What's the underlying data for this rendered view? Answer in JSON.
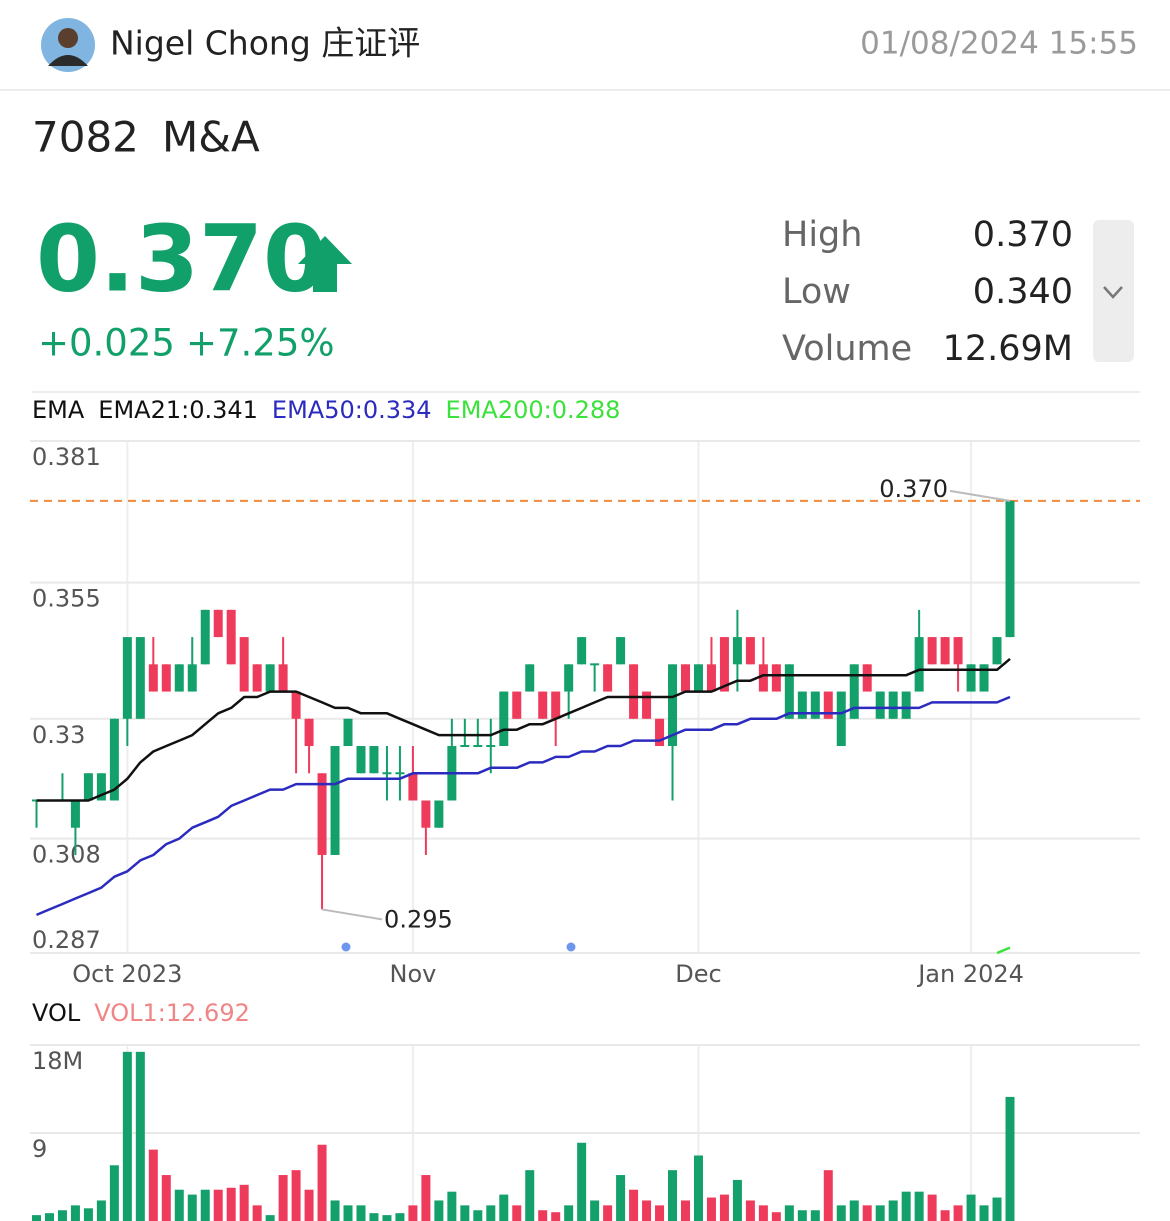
{
  "header": {
    "author": "Nigel Chong 庄证评",
    "timestamp": "01/08/2024 15:55"
  },
  "quote": {
    "code": "7082",
    "name": "M&A",
    "price": "0.370",
    "change": "+0.025",
    "change_pct": "+7.25%",
    "stats": [
      {
        "label": "High",
        "value": "0.370"
      },
      {
        "label": "Low",
        "value": "0.340"
      },
      {
        "label": "Volume",
        "value": "12.69M"
      }
    ]
  },
  "chart_data": [
    {
      "type": "candlestick",
      "indicator": "EMA",
      "categories": [
        null,
        null,
        null,
        null,
        null,
        null,
        null,
        "Oct 2023",
        null,
        null,
        null,
        null,
        null,
        null,
        null,
        null,
        null,
        null,
        null,
        null,
        null,
        null,
        null,
        null,
        null,
        null,
        null,
        null,
        null,
        "Nov",
        null,
        null,
        null,
        null,
        null,
        null,
        null,
        null,
        null,
        null,
        null,
        null,
        null,
        null,
        null,
        null,
        null,
        null,
        null,
        null,
        null,
        "Dec",
        null,
        null,
        null,
        null,
        null,
        null,
        null,
        null,
        null,
        null,
        null,
        null,
        null,
        null,
        null,
        null,
        null,
        null,
        null,
        null,
        "Jan 2024",
        null,
        null,
        null
      ],
      "candles": [
        [
          0.315,
          0.315,
          0.31,
          0.315
        ],
        [
          0.315,
          0.315,
          0.315,
          0.315
        ],
        [
          0.315,
          0.32,
          0.315,
          0.315
        ],
        [
          0.31,
          0.315,
          0.305,
          0.315
        ],
        [
          0.315,
          0.32,
          0.315,
          0.32
        ],
        [
          0.315,
          0.32,
          0.315,
          0.32
        ],
        [
          0.315,
          0.33,
          0.315,
          0.33
        ],
        [
          0.33,
          0.345,
          0.325,
          0.345
        ],
        [
          0.33,
          0.345,
          0.33,
          0.345
        ],
        [
          0.34,
          0.345,
          0.335,
          0.335
        ],
        [
          0.34,
          0.34,
          0.335,
          0.335
        ],
        [
          0.335,
          0.34,
          0.335,
          0.34
        ],
        [
          0.335,
          0.345,
          0.335,
          0.34
        ],
        [
          0.34,
          0.35,
          0.34,
          0.35
        ],
        [
          0.35,
          0.35,
          0.345,
          0.345
        ],
        [
          0.35,
          0.35,
          0.34,
          0.34
        ],
        [
          0.345,
          0.345,
          0.335,
          0.335
        ],
        [
          0.34,
          0.34,
          0.335,
          0.335
        ],
        [
          0.335,
          0.34,
          0.335,
          0.34
        ],
        [
          0.34,
          0.345,
          0.335,
          0.335
        ],
        [
          0.335,
          0.335,
          0.32,
          0.33
        ],
        [
          0.33,
          0.33,
          0.32,
          0.325
        ],
        [
          0.32,
          0.32,
          0.295,
          0.305
        ],
        [
          0.305,
          0.325,
          0.305,
          0.325
        ],
        [
          0.325,
          0.33,
          0.325,
          0.33
        ],
        [
          0.32,
          0.325,
          0.32,
          0.325
        ],
        [
          0.32,
          0.325,
          0.32,
          0.325
        ],
        [
          0.32,
          0.325,
          0.315,
          0.32
        ],
        [
          0.32,
          0.325,
          0.315,
          0.32
        ],
        [
          0.32,
          0.325,
          0.315,
          0.315
        ],
        [
          0.315,
          0.315,
          0.305,
          0.31
        ],
        [
          0.31,
          0.315,
          0.31,
          0.315
        ],
        [
          0.315,
          0.33,
          0.315,
          0.325
        ],
        [
          0.325,
          0.33,
          0.325,
          0.325
        ],
        [
          0.325,
          0.33,
          0.325,
          0.325
        ],
        [
          0.325,
          0.33,
          0.32,
          0.325
        ],
        [
          0.325,
          0.335,
          0.325,
          0.335
        ],
        [
          0.335,
          0.335,
          0.33,
          0.33
        ],
        [
          0.335,
          0.34,
          0.335,
          0.34
        ],
        [
          0.335,
          0.335,
          0.33,
          0.33
        ],
        [
          0.335,
          0.335,
          0.325,
          0.33
        ],
        [
          0.335,
          0.34,
          0.33,
          0.34
        ],
        [
          0.34,
          0.345,
          0.34,
          0.345
        ],
        [
          0.34,
          0.34,
          0.335,
          0.34
        ],
        [
          0.34,
          0.34,
          0.335,
          0.335
        ],
        [
          0.34,
          0.345,
          0.34,
          0.345
        ],
        [
          0.34,
          0.34,
          0.33,
          0.33
        ],
        [
          0.335,
          0.335,
          0.33,
          0.33
        ],
        [
          0.33,
          0.33,
          0.325,
          0.325
        ],
        [
          0.325,
          0.34,
          0.315,
          0.34
        ],
        [
          0.34,
          0.34,
          0.335,
          0.335
        ],
        [
          0.335,
          0.34,
          0.335,
          0.34
        ],
        [
          0.34,
          0.345,
          0.335,
          0.335
        ],
        [
          0.345,
          0.345,
          0.335,
          0.335
        ],
        [
          0.34,
          0.35,
          0.335,
          0.345
        ],
        [
          0.345,
          0.345,
          0.34,
          0.34
        ],
        [
          0.34,
          0.345,
          0.335,
          0.335
        ],
        [
          0.34,
          0.34,
          0.335,
          0.335
        ],
        [
          0.33,
          0.34,
          0.33,
          0.34
        ],
        [
          0.33,
          0.335,
          0.33,
          0.335
        ],
        [
          0.33,
          0.335,
          0.33,
          0.335
        ],
        [
          0.335,
          0.335,
          0.33,
          0.33
        ],
        [
          0.325,
          0.335,
          0.325,
          0.335
        ],
        [
          0.33,
          0.34,
          0.33,
          0.34
        ],
        [
          0.34,
          0.34,
          0.335,
          0.335
        ],
        [
          0.33,
          0.335,
          0.33,
          0.335
        ],
        [
          0.33,
          0.335,
          0.33,
          0.335
        ],
        [
          0.33,
          0.335,
          0.33,
          0.335
        ],
        [
          0.335,
          0.35,
          0.335,
          0.345
        ],
        [
          0.345,
          0.345,
          0.34,
          0.34
        ],
        [
          0.345,
          0.345,
          0.34,
          0.34
        ],
        [
          0.345,
          0.345,
          0.335,
          0.34
        ],
        [
          0.335,
          0.34,
          0.335,
          0.34
        ],
        [
          0.335,
          0.34,
          0.335,
          0.34
        ],
        [
          0.34,
          0.345,
          0.34,
          0.345
        ],
        [
          0.345,
          0.37,
          0.345,
          0.37
        ]
      ],
      "up_color": "#13a06b",
      "down_color": "#ee3b5b",
      "series": [
        {
          "name": "EMA21:0.341",
          "color": "#111111",
          "values": [
            0.315,
            0.315,
            0.315,
            0.315,
            0.315,
            0.316,
            0.317,
            0.319,
            0.322,
            0.324,
            0.325,
            0.326,
            0.327,
            0.329,
            0.331,
            0.332,
            0.334,
            0.334,
            0.335,
            0.335,
            0.335,
            0.334,
            0.333,
            0.332,
            0.332,
            0.331,
            0.331,
            0.331,
            0.33,
            0.329,
            0.328,
            0.327,
            0.327,
            0.327,
            0.327,
            0.327,
            0.328,
            0.328,
            0.329,
            0.329,
            0.33,
            0.331,
            0.332,
            0.333,
            0.334,
            0.334,
            0.334,
            0.334,
            0.334,
            0.334,
            0.335,
            0.335,
            0.335,
            0.336,
            0.337,
            0.337,
            0.338,
            0.338,
            0.338,
            0.338,
            0.338,
            0.338,
            0.338,
            0.338,
            0.338,
            0.338,
            0.338,
            0.338,
            0.339,
            0.339,
            0.339,
            0.339,
            0.339,
            0.339,
            0.339,
            0.341
          ]
        },
        {
          "name": "EMA50:0.334",
          "color": "#2b2bbf",
          "values": [
            0.294,
            0.295,
            0.296,
            0.297,
            0.298,
            0.299,
            0.301,
            0.302,
            0.304,
            0.305,
            0.307,
            0.308,
            0.31,
            0.311,
            0.312,
            0.314,
            0.315,
            0.316,
            0.317,
            0.317,
            0.318,
            0.318,
            0.318,
            0.318,
            0.319,
            0.319,
            0.319,
            0.319,
            0.319,
            0.32,
            0.32,
            0.32,
            0.32,
            0.32,
            0.32,
            0.321,
            0.321,
            0.321,
            0.322,
            0.322,
            0.323,
            0.323,
            0.324,
            0.324,
            0.325,
            0.325,
            0.326,
            0.326,
            0.326,
            0.327,
            0.328,
            0.328,
            0.328,
            0.329,
            0.329,
            0.33,
            0.33,
            0.33,
            0.331,
            0.331,
            0.331,
            0.331,
            0.331,
            0.332,
            0.332,
            0.332,
            0.332,
            0.332,
            0.332,
            0.333,
            0.333,
            0.333,
            0.333,
            0.333,
            0.333,
            0.334
          ]
        },
        {
          "name": "EMA200:0.288",
          "color": "#3be23b",
          "values": [
            null,
            null,
            null,
            null,
            null,
            null,
            null,
            null,
            null,
            null,
            null,
            null,
            null,
            null,
            null,
            null,
            null,
            null,
            null,
            null,
            null,
            null,
            null,
            null,
            null,
            null,
            null,
            null,
            null,
            null,
            null,
            null,
            null,
            null,
            null,
            null,
            null,
            null,
            null,
            null,
            null,
            null,
            null,
            null,
            null,
            null,
            null,
            null,
            null,
            null,
            null,
            null,
            null,
            null,
            null,
            null,
            null,
            null,
            null,
            null,
            null,
            null,
            null,
            null,
            null,
            null,
            null,
            null,
            null,
            null,
            null,
            null,
            null,
            null,
            0.287,
            0.288
          ]
        }
      ],
      "ylim": [
        0.287,
        0.381
      ],
      "yticks": [
        0.381,
        0.355,
        0.33,
        0.308,
        0.287
      ],
      "grid": true,
      "annotations": [
        "0.370",
        "0.295"
      ],
      "price_line_color": "#f08a3c"
    },
    {
      "type": "bar",
      "title": "VOL",
      "series": [
        {
          "name": "VOL1:12.692",
          "color": "#f08585",
          "values": [
            0.6,
            0.8,
            1.1,
            1.6,
            1.3,
            2.1,
            5.7,
            17.3,
            17.3,
            7.3,
            4.7,
            3.2,
            2.7,
            3.2,
            3.2,
            3.4,
            3.7,
            1.6,
            0.6,
            4.7,
            5.2,
            3.2,
            7.8,
            2.1,
            1.6,
            1.6,
            0.8,
            0.6,
            0.8,
            1.6,
            4.7,
            2.1,
            3.0,
            1.6,
            1.1,
            1.6,
            2.7,
            1.6,
            5.2,
            1.1,
            0.9,
            1.6,
            8.0,
            2.1,
            1.6,
            4.7,
            3.2,
            2.1,
            1.6,
            5.2,
            2.1,
            6.7,
            2.4,
            2.7,
            4.2,
            2.1,
            1.6,
            0.9,
            1.6,
            1.1,
            1.1,
            5.2,
            1.6,
            2.1,
            1.6,
            1.6,
            2.1,
            3.0,
            3.0,
            2.7,
            1.1,
            1.6,
            2.7,
            1.6,
            2.4,
            12.692
          ]
        }
      ],
      "ylim": [
        0,
        18
      ],
      "yticks": [
        {
          "value": 18,
          "label": "18M"
        },
        9
      ],
      "grid": true
    }
  ]
}
